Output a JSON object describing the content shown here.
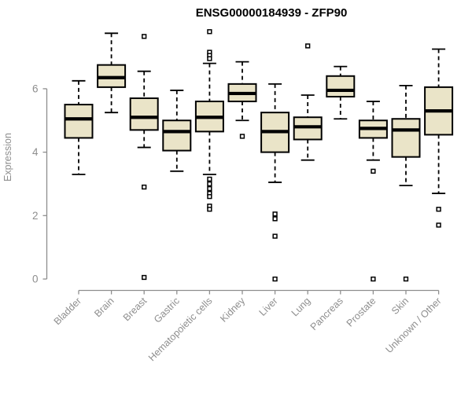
{
  "chart_data": {
    "type": "boxplot",
    "title": "ENSG00000184939 - ZFP90",
    "ylabel": "Expression",
    "xlabel": "",
    "yticks": [
      0,
      2,
      4,
      6
    ],
    "ylim": [
      0,
      7.9
    ],
    "grid": false,
    "legend": "none",
    "series": [
      {
        "label": "Bladder",
        "low": 3.3,
        "q1": 4.45,
        "median": 5.05,
        "q3": 5.5,
        "high": 6.25,
        "outliers": []
      },
      {
        "label": "Brain",
        "low": 5.25,
        "q1": 6.05,
        "median": 6.35,
        "q3": 6.75,
        "high": 7.75,
        "outliers": []
      },
      {
        "label": "Breast",
        "low": 4.15,
        "q1": 4.7,
        "median": 5.1,
        "q3": 5.7,
        "high": 6.55,
        "outliers": [
          7.65,
          2.9,
          0.05
        ]
      },
      {
        "label": "Gastric",
        "low": 3.4,
        "q1": 4.05,
        "median": 4.65,
        "q3": 5.0,
        "high": 5.95,
        "outliers": []
      },
      {
        "label": "Hematopoietic cells",
        "low": 3.3,
        "q1": 4.65,
        "median": 5.1,
        "q3": 5.6,
        "high": 6.8,
        "outliers": [
          7.8,
          7.15,
          7.05,
          6.95,
          3.15,
          3.0,
          2.85,
          2.7,
          2.6,
          2.3,
          2.2
        ]
      },
      {
        "label": "Kidney",
        "low": 5.0,
        "q1": 5.6,
        "median": 5.85,
        "q3": 6.15,
        "high": 6.85,
        "outliers": [
          4.5
        ]
      },
      {
        "label": "Liver",
        "low": 3.05,
        "q1": 4.0,
        "median": 4.65,
        "q3": 5.25,
        "high": 6.15,
        "outliers": [
          2.05,
          1.9,
          1.35,
          0.0
        ]
      },
      {
        "label": "Lung",
        "low": 3.75,
        "q1": 4.4,
        "median": 4.8,
        "q3": 5.1,
        "high": 5.8,
        "outliers": [
          7.35
        ]
      },
      {
        "label": "Pancreas",
        "low": 5.05,
        "q1": 5.75,
        "median": 5.95,
        "q3": 6.4,
        "high": 6.7,
        "outliers": []
      },
      {
        "label": "Prostate",
        "low": 3.75,
        "q1": 4.45,
        "median": 4.75,
        "q3": 5.0,
        "high": 5.6,
        "outliers": [
          3.4,
          0.0
        ]
      },
      {
        "label": "Skin",
        "low": 2.95,
        "q1": 3.85,
        "median": 4.7,
        "q3": 5.05,
        "high": 6.1,
        "outliers": [
          0.0
        ]
      },
      {
        "label": "Unknown / Other",
        "low": 2.7,
        "q1": 4.55,
        "median": 5.3,
        "q3": 6.05,
        "high": 7.25,
        "outliers": [
          2.2,
          1.7
        ]
      }
    ],
    "colors": {
      "box_fill": "#eae4c8",
      "box_stroke": "#000000",
      "median": "#000000",
      "whisker": "#000000",
      "outlier_fill": "#ffffff",
      "outlier_stroke": "#000000",
      "axis": "#8e8e8e",
      "axis_text": "#8e8e8e",
      "title_text": "#000000",
      "background": "#ffffff"
    }
  }
}
